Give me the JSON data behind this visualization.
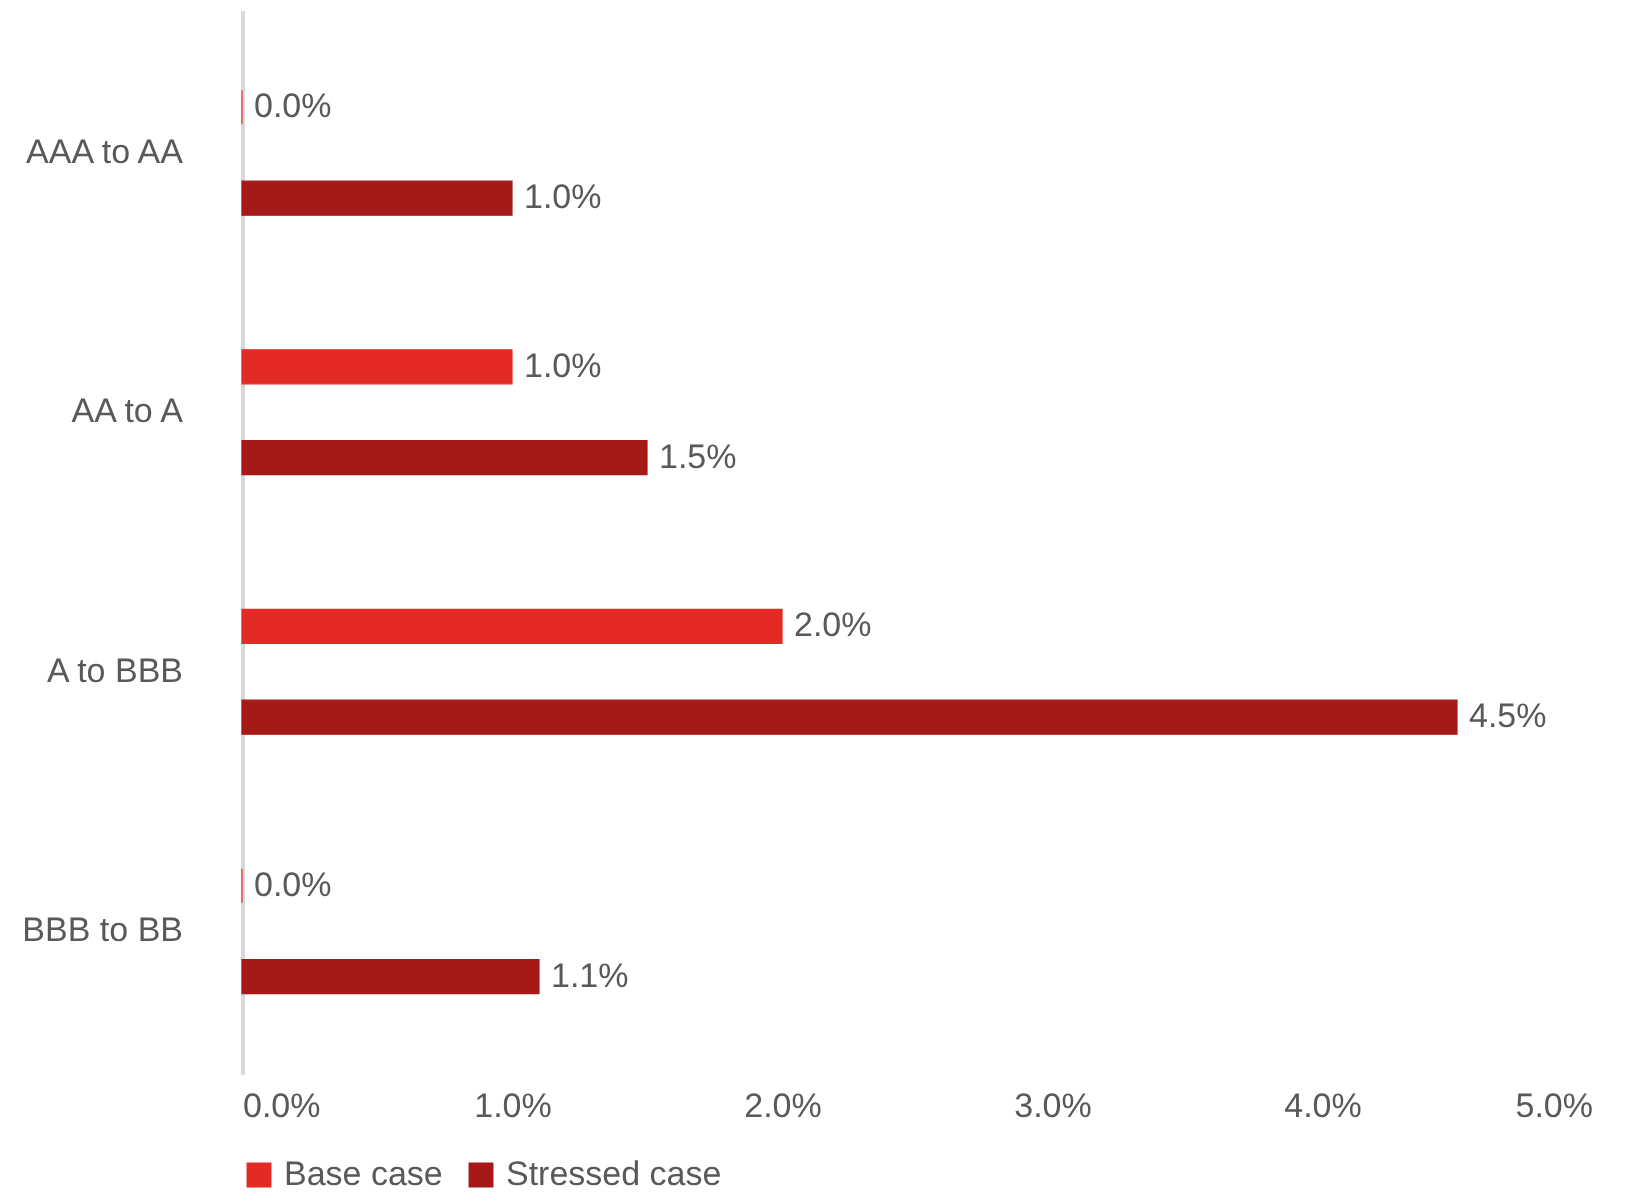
{
  "chart_data": {
    "type": "bar",
    "orientation": "horizontal",
    "categories": [
      "AAA to AA",
      "AA to A",
      "A to BBB",
      "BBB to BB"
    ],
    "series": [
      {
        "name": "Base case",
        "color": "#e32b24",
        "values": [
          0.0,
          1.0,
          2.0,
          0.0
        ],
        "value_labels": [
          "0.0%",
          "1.0%",
          "2.0%",
          "0.0%"
        ]
      },
      {
        "name": "Stressed case",
        "color": "#a51916",
        "values": [
          1.0,
          1.5,
          4.5,
          1.1
        ],
        "value_labels": [
          "1.0%",
          "1.5%",
          "4.5%",
          "1.1%"
        ]
      }
    ],
    "xlim": [
      0,
      5
    ],
    "xticks": [
      {
        "value": 0,
        "label": "0.0%"
      },
      {
        "value": 1,
        "label": "1.0%"
      },
      {
        "value": 2,
        "label": "2.0%"
      },
      {
        "value": 3,
        "label": "3.0%"
      },
      {
        "value": 4,
        "label": "4.0%"
      },
      {
        "value": 5,
        "label": "5.0%"
      }
    ],
    "grid": false,
    "legend": "bottom"
  }
}
